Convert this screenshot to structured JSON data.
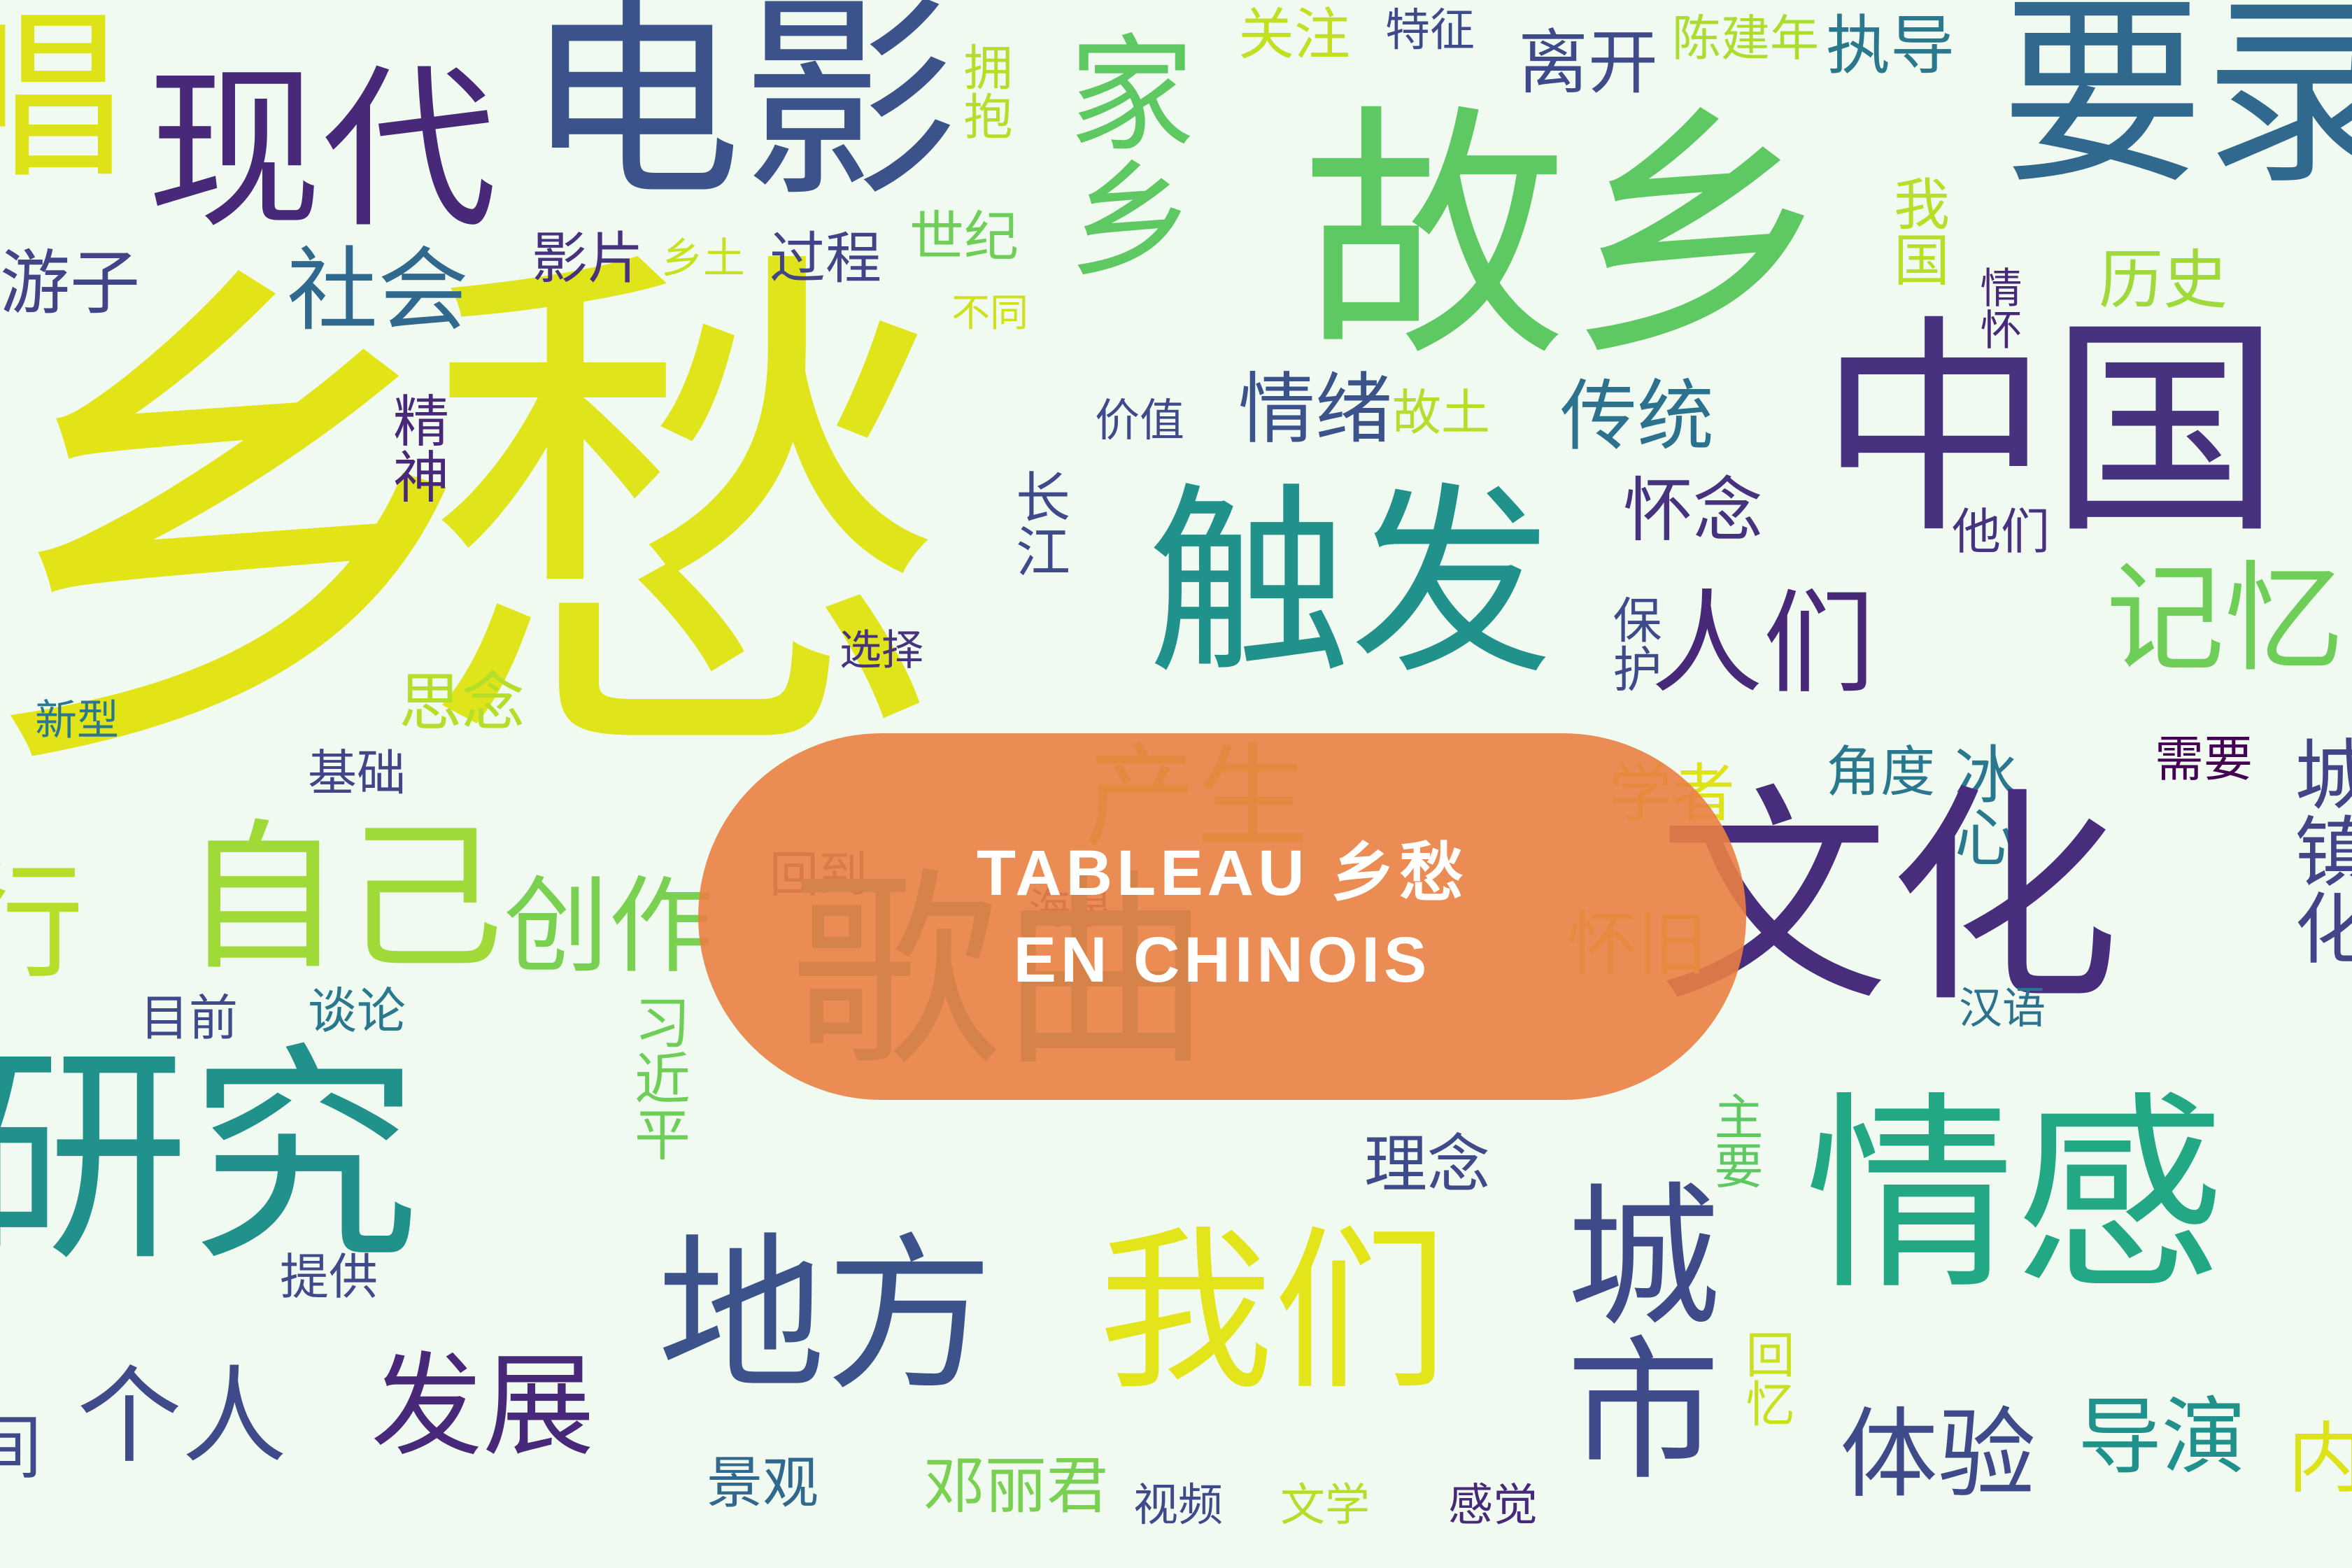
{
  "banner": {
    "line1": "TABLEAU 乡愁",
    "line2": "EN CHINOIS"
  },
  "colors": {
    "badge": "#e98043",
    "background": "#f0faf0"
  },
  "words": [
    "乡",
    "愁",
    "故乡",
    "电影",
    "现代",
    "要录",
    "唱",
    "游子",
    "社会",
    "影片",
    "乡土",
    "过程",
    "世纪",
    "关注",
    "特征",
    "陈建年",
    "执导",
    "离开",
    "家乡",
    "拥抱",
    "我国",
    "情怀",
    "历史",
    "中国",
    "触发",
    "不同",
    "价值",
    "情绪",
    "故土",
    "传统",
    "精神",
    "长江",
    "他们",
    "怀念",
    "人们",
    "记忆",
    "保护",
    "选择",
    "思念",
    "新型",
    "基础",
    "产生",
    "学者",
    "角度",
    "冰心",
    "需要",
    "回到",
    "海泉",
    "歌曲",
    "文化",
    "自己",
    "创作",
    "行",
    "怀旧",
    "城镇化",
    "目前",
    "谈论",
    "习近平",
    "汉语",
    "研究",
    "理念",
    "主要",
    "情感",
    "提供",
    "地方",
    "我们",
    "城市",
    "个人",
    "发展",
    "回忆",
    "体验",
    "导演",
    "内",
    "间",
    "景观",
    "邓丽君",
    "视频",
    "文学",
    "感觉"
  ]
}
